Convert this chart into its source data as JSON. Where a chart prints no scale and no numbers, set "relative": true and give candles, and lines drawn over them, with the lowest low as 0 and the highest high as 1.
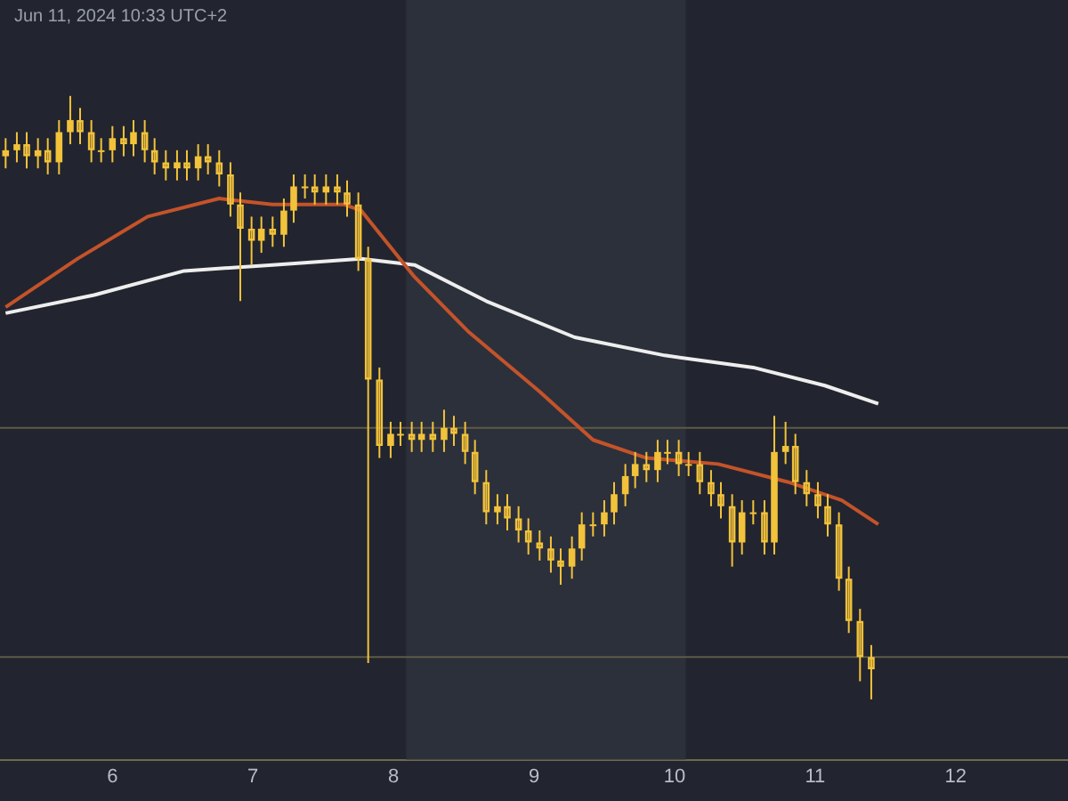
{
  "chart_data": {
    "type": "candlestick",
    "relative": true,
    "color": "#f2c23a",
    "annotations": [
      "Jun 11, 2024 10:33 UTC+2"
    ],
    "xlim": [
      5.2,
      12.8
    ],
    "xticks": [
      6,
      7,
      8,
      9,
      10,
      11,
      12
    ],
    "bands": [
      {
        "axis": "x",
        "from": 8.09,
        "to": 10.08,
        "color": "#2c303b"
      }
    ],
    "ref_lines": [
      {
        "axis": "y",
        "value": 0.45,
        "color": "#5e5a44"
      },
      {
        "axis": "y",
        "value": 0.07,
        "color": "#5e5a44"
      }
    ],
    "x": [
      5.24,
      5.32,
      5.39,
      5.47,
      5.54,
      5.62,
      5.7,
      5.77,
      5.85,
      5.92,
      6.0,
      6.08,
      6.15,
      6.23,
      6.3,
      6.38,
      6.46,
      6.53,
      6.61,
      6.68,
      6.76,
      6.84,
      6.91,
      6.99,
      7.06,
      7.14,
      7.22,
      7.29,
      7.37,
      7.44,
      7.52,
      7.6,
      7.67,
      7.75,
      7.82,
      7.9,
      7.98,
      8.05,
      8.13,
      8.2,
      8.28,
      8.36,
      8.43,
      8.51,
      8.58,
      8.66,
      8.74,
      8.81,
      8.89,
      8.96,
      9.04,
      9.12,
      9.19,
      9.27,
      9.34,
      9.42,
      9.5,
      9.57,
      9.65,
      9.72,
      9.8,
      9.88,
      9.95,
      10.03,
      10.1,
      10.18,
      10.26,
      10.33,
      10.41,
      10.48,
      10.56,
      10.64,
      10.71,
      10.79,
      10.86,
      10.94,
      11.02,
      11.09,
      11.17,
      11.24,
      11.32,
      11.4
    ],
    "ohlc": [
      [
        0.9,
        0.93,
        0.88,
        0.91
      ],
      [
        0.91,
        0.94,
        0.89,
        0.92
      ],
      [
        0.92,
        0.94,
        0.88,
        0.9
      ],
      [
        0.9,
        0.93,
        0.88,
        0.91
      ],
      [
        0.91,
        0.93,
        0.87,
        0.89
      ],
      [
        0.89,
        0.96,
        0.87,
        0.94
      ],
      [
        0.94,
        1.0,
        0.92,
        0.96
      ],
      [
        0.96,
        0.98,
        0.92,
        0.94
      ],
      [
        0.94,
        0.96,
        0.89,
        0.91
      ],
      [
        0.91,
        0.93,
        0.89,
        0.91
      ],
      [
        0.91,
        0.95,
        0.89,
        0.93
      ],
      [
        0.93,
        0.95,
        0.9,
        0.92
      ],
      [
        0.92,
        0.96,
        0.9,
        0.94
      ],
      [
        0.94,
        0.96,
        0.89,
        0.91
      ],
      [
        0.91,
        0.93,
        0.87,
        0.89
      ],
      [
        0.89,
        0.91,
        0.86,
        0.88
      ],
      [
        0.88,
        0.91,
        0.86,
        0.89
      ],
      [
        0.89,
        0.91,
        0.86,
        0.88
      ],
      [
        0.88,
        0.92,
        0.86,
        0.9
      ],
      [
        0.9,
        0.92,
        0.87,
        0.89
      ],
      [
        0.89,
        0.91,
        0.85,
        0.87
      ],
      [
        0.87,
        0.89,
        0.8,
        0.82
      ],
      [
        0.82,
        0.84,
        0.66,
        0.78
      ],
      [
        0.78,
        0.8,
        0.72,
        0.76
      ],
      [
        0.76,
        0.8,
        0.74,
        0.78
      ],
      [
        0.78,
        0.8,
        0.75,
        0.77
      ],
      [
        0.77,
        0.83,
        0.75,
        0.81
      ],
      [
        0.81,
        0.87,
        0.79,
        0.85
      ],
      [
        0.85,
        0.87,
        0.83,
        0.85
      ],
      [
        0.85,
        0.87,
        0.82,
        0.84
      ],
      [
        0.84,
        0.87,
        0.82,
        0.85
      ],
      [
        0.85,
        0.87,
        0.82,
        0.84
      ],
      [
        0.84,
        0.86,
        0.8,
        0.82
      ],
      [
        0.82,
        0.84,
        0.71,
        0.73
      ],
      [
        0.73,
        0.75,
        0.06,
        0.53
      ],
      [
        0.53,
        0.55,
        0.4,
        0.42
      ],
      [
        0.42,
        0.46,
        0.4,
        0.44
      ],
      [
        0.44,
        0.46,
        0.42,
        0.44
      ],
      [
        0.44,
        0.46,
        0.41,
        0.43
      ],
      [
        0.43,
        0.46,
        0.41,
        0.44
      ],
      [
        0.44,
        0.46,
        0.41,
        0.43
      ],
      [
        0.43,
        0.48,
        0.41,
        0.45
      ],
      [
        0.45,
        0.47,
        0.42,
        0.44
      ],
      [
        0.44,
        0.46,
        0.39,
        0.41
      ],
      [
        0.41,
        0.43,
        0.34,
        0.36
      ],
      [
        0.36,
        0.38,
        0.29,
        0.31
      ],
      [
        0.31,
        0.34,
        0.29,
        0.32
      ],
      [
        0.32,
        0.34,
        0.28,
        0.3
      ],
      [
        0.3,
        0.32,
        0.26,
        0.28
      ],
      [
        0.28,
        0.3,
        0.24,
        0.26
      ],
      [
        0.26,
        0.28,
        0.23,
        0.25
      ],
      [
        0.25,
        0.27,
        0.21,
        0.23
      ],
      [
        0.23,
        0.25,
        0.19,
        0.22
      ],
      [
        0.22,
        0.27,
        0.2,
        0.25
      ],
      [
        0.25,
        0.31,
        0.23,
        0.29
      ],
      [
        0.29,
        0.31,
        0.27,
        0.29
      ],
      [
        0.29,
        0.33,
        0.27,
        0.31
      ],
      [
        0.31,
        0.36,
        0.29,
        0.34
      ],
      [
        0.34,
        0.39,
        0.32,
        0.37
      ],
      [
        0.37,
        0.41,
        0.35,
        0.39
      ],
      [
        0.39,
        0.41,
        0.36,
        0.38
      ],
      [
        0.38,
        0.43,
        0.36,
        0.41
      ],
      [
        0.41,
        0.43,
        0.39,
        0.41
      ],
      [
        0.41,
        0.43,
        0.37,
        0.39
      ],
      [
        0.39,
        0.41,
        0.37,
        0.39
      ],
      [
        0.39,
        0.41,
        0.34,
        0.36
      ],
      [
        0.36,
        0.38,
        0.32,
        0.34
      ],
      [
        0.34,
        0.36,
        0.3,
        0.32
      ],
      [
        0.32,
        0.34,
        0.22,
        0.26
      ],
      [
        0.26,
        0.33,
        0.24,
        0.31
      ],
      [
        0.31,
        0.33,
        0.29,
        0.31
      ],
      [
        0.31,
        0.33,
        0.24,
        0.26
      ],
      [
        0.26,
        0.47,
        0.24,
        0.41
      ],
      [
        0.41,
        0.46,
        0.39,
        0.42
      ],
      [
        0.42,
        0.44,
        0.34,
        0.36
      ],
      [
        0.36,
        0.38,
        0.32,
        0.34
      ],
      [
        0.34,
        0.36,
        0.3,
        0.32
      ],
      [
        0.32,
        0.34,
        0.27,
        0.29
      ],
      [
        0.29,
        0.31,
        0.18,
        0.2
      ],
      [
        0.2,
        0.22,
        0.11,
        0.13
      ],
      [
        0.13,
        0.15,
        0.03,
        0.07
      ],
      [
        0.07,
        0.09,
        0.0,
        0.05
      ]
    ],
    "series": [
      {
        "type": "line",
        "color": "#c4532a",
        "x": [
          5.24,
          5.75,
          6.25,
          6.76,
          7.14,
          7.65,
          7.77,
          8.15,
          8.53,
          9.04,
          9.42,
          9.8,
          10.31,
          10.81,
          11.19,
          11.45
        ],
        "values": [
          0.65,
          0.73,
          0.8,
          0.83,
          0.82,
          0.82,
          0.81,
          0.7,
          0.61,
          0.51,
          0.43,
          0.4,
          0.39,
          0.36,
          0.33,
          0.29
        ]
      },
      {
        "type": "line",
        "color": "#eeeeee",
        "x": [
          5.24,
          5.87,
          6.51,
          7.14,
          7.77,
          8.15,
          8.66,
          9.29,
          9.93,
          10.56,
          11.07,
          11.45
        ],
        "values": [
          0.64,
          0.67,
          0.71,
          0.72,
          0.73,
          0.72,
          0.66,
          0.6,
          0.57,
          0.55,
          0.52,
          0.49
        ]
      }
    ]
  }
}
